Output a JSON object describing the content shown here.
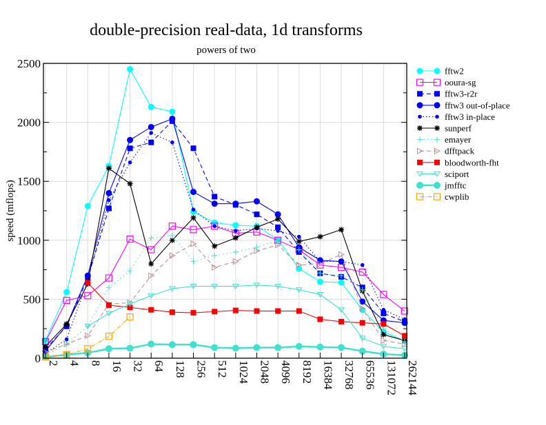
{
  "chart_data": {
    "type": "line",
    "title": "double-precision real-data, 1d transforms",
    "subtitle": "powers of two",
    "xlabel": "",
    "ylabel": "speed (mflops)",
    "ylim": [
      0,
      2500
    ],
    "yticks": [
      "0",
      "500",
      "1000",
      "1500",
      "2000",
      "2500"
    ],
    "grid": true,
    "legend_position": "right",
    "categories": [
      "2",
      "4",
      "8",
      "16",
      "32",
      "64",
      "128",
      "256",
      "512",
      "1024",
      "2048",
      "4096",
      "8192",
      "16384",
      "32768",
      "65536",
      "131072",
      "262144"
    ],
    "series": [
      {
        "name": "fftw2",
        "color": "#00ffff",
        "dash": "",
        "marker": "circle",
        "values": [
          150,
          560,
          1290,
          1630,
          2450,
          2130,
          2090,
          1240,
          1150,
          1127,
          1120,
          1005,
          760,
          648,
          642,
          409,
          222,
          146
        ]
      },
      {
        "name": "ooura-sg",
        "color": "#ff00ff",
        "dash": "",
        "marker": "opensquare",
        "values": [
          140,
          490,
          530,
          680,
          1010,
          920,
          1120,
          1090,
          1120,
          1060,
          1070,
          1000,
          920,
          790,
          770,
          730,
          540,
          400
        ]
      },
      {
        "name": "fftw3-r2r",
        "color": "#0000ff",
        "dash": "6,4",
        "marker": "square",
        "values": [
          80,
          270,
          680,
          1270,
          1780,
          1830,
          2010,
          1780,
          1370,
          1300,
          1220,
          1110,
          900,
          720,
          690,
          600,
          380,
          310
        ]
      },
      {
        "name": "fftw3 out-of-place",
        "color": "#0000ff",
        "dash": "",
        "marker": "circle",
        "values": [
          60,
          280,
          700,
          1400,
          1850,
          1960,
          2030,
          1410,
          1310,
          1310,
          1330,
          1220,
          940,
          830,
          820,
          480,
          320,
          300
        ]
      },
      {
        "name": "fftw3 in-place",
        "color": "#0000ff",
        "dash": "1.5,3",
        "marker": "dot",
        "values": [
          40,
          160,
          660,
          1340,
          1660,
          1910,
          1830,
          1260,
          1120,
          1080,
          1100,
          1080,
          1030,
          820,
          820,
          790,
          410,
          330
        ]
      },
      {
        "name": "sunperf",
        "color": "#000000",
        "dash": "",
        "marker": "star",
        "values": [
          100,
          290,
          630,
          1610,
          1480,
          800,
          1000,
          1190,
          950,
          1020,
          1110,
          1180,
          990,
          1030,
          1090,
          570,
          200,
          150
        ]
      },
      {
        "name": "emayer",
        "color": "#40e0d0",
        "dash": "1.5,4",
        "marker": "plus",
        "values": [
          30,
          120,
          270,
          600,
          740,
          1020,
          1040,
          820,
          870,
          900,
          940,
          1000,
          920,
          720,
          700,
          580,
          250,
          140
        ]
      },
      {
        "name": "dfftpack",
        "color": "#bc8f8f",
        "dash": "6,4",
        "marker": "triright",
        "values": [
          50,
          120,
          190,
          460,
          470,
          700,
          870,
          970,
          770,
          820,
          910,
          960,
          790,
          800,
          880,
          420,
          150,
          120
        ]
      },
      {
        "name": "bloodworth-fht",
        "color": "#ff0000",
        "dash": "",
        "marker": "square",
        "values": [
          null,
          null,
          640,
          450,
          430,
          410,
          390,
          385,
          395,
          405,
          400,
          400,
          400,
          330,
          310,
          300,
          290,
          190
        ]
      },
      {
        "name": "sciport",
        "color": "#40e0d0",
        "dash": "",
        "marker": "tridown",
        "values": [
          null,
          null,
          270,
          380,
          460,
          530,
          590,
          610,
          610,
          610,
          620,
          610,
          580,
          540,
          410,
          170,
          100,
          80
        ]
      },
      {
        "name": "jmfftc",
        "color": "#40e0d0",
        "dash": "",
        "marker": "bigcircle",
        "width": 2.5,
        "values": [
          10,
          30,
          45,
          80,
          85,
          120,
          115,
          115,
          90,
          85,
          90,
          90,
          100,
          95,
          90,
          60,
          35,
          25
        ]
      },
      {
        "name": "cwplib",
        "color": "#ffa500",
        "dash": "6,2,1.5,2",
        "marker": "opensquare",
        "values": [
          10,
          30,
          80,
          185,
          350,
          null,
          null,
          null,
          null,
          null,
          null,
          null,
          null,
          null,
          null,
          null,
          null,
          null
        ]
      }
    ]
  }
}
